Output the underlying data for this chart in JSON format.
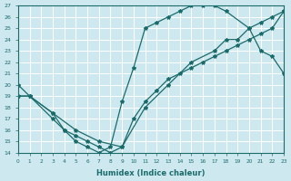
{
  "xlabel": "Humidex (Indice chaleur)",
  "bg_color": "#cde8ee",
  "grid_color": "#b8d8e0",
  "line_color": "#1a6b6b",
  "xlim": [
    0,
    23
  ],
  "ylim": [
    14,
    27
  ],
  "xtick_vals": [
    0,
    1,
    2,
    3,
    4,
    5,
    6,
    7,
    8,
    9,
    10,
    11,
    12,
    13,
    14,
    15,
    16,
    17,
    18,
    19,
    20,
    21,
    22,
    23
  ],
  "ytick_vals": [
    14,
    15,
    16,
    17,
    18,
    19,
    20,
    21,
    22,
    23,
    24,
    25,
    26,
    27
  ],
  "line1_x": [
    0,
    1,
    3,
    4,
    5,
    6,
    7,
    8,
    9,
    10,
    11,
    12,
    13,
    14,
    15,
    16,
    17,
    18,
    20,
    21,
    22,
    23
  ],
  "line1_y": [
    20,
    19,
    17,
    16,
    15,
    14.5,
    14,
    14.5,
    18.5,
    21.5,
    25,
    25.5,
    26,
    26.5,
    27,
    27,
    27,
    26.5,
    25,
    23,
    22.5,
    21
  ],
  "line2_x": [
    0,
    1,
    3,
    5,
    7,
    9,
    11,
    13,
    15,
    17,
    18,
    19,
    20,
    21,
    22,
    23
  ],
  "line2_y": [
    19,
    19,
    17.5,
    16,
    15,
    14.5,
    18,
    20,
    22,
    23,
    24,
    24,
    25,
    25.5,
    26,
    26.5
  ],
  "line3_x": [
    0,
    1,
    3,
    4,
    5,
    6,
    7,
    8,
    9,
    10,
    11,
    12,
    13,
    14,
    15,
    16,
    17,
    18,
    19,
    20,
    21,
    22,
    23
  ],
  "line3_y": [
    19,
    19,
    17.5,
    16,
    15.5,
    15,
    14.5,
    14,
    14.5,
    17,
    18.5,
    19.5,
    20.5,
    21,
    21.5,
    22,
    22.5,
    23,
    23.5,
    24,
    24.5,
    25,
    26.5
  ]
}
